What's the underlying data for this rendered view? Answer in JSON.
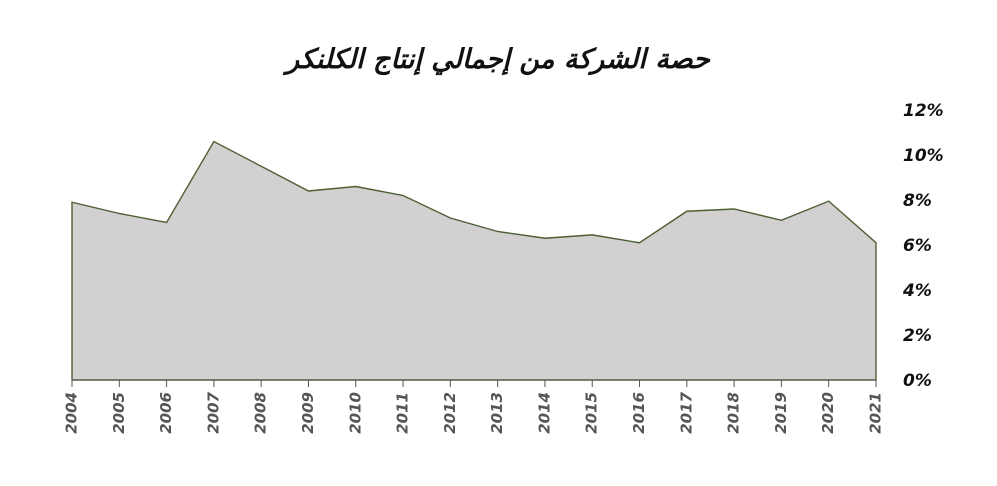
{
  "chart_data": {
    "type": "area",
    "title": "حصة الشركة من إجمالي إنتاج الكلنكر",
    "xlabel": "",
    "ylabel": "",
    "categories": [
      "2004",
      "2005",
      "2006",
      "2007",
      "2008",
      "2009",
      "2010",
      "2011",
      "2012",
      "2013",
      "2014",
      "2015",
      "2016",
      "2017",
      "2018",
      "2019",
      "2020",
      "2021"
    ],
    "values": [
      7.9,
      7.4,
      7.0,
      10.6,
      9.5,
      8.4,
      8.6,
      8.2,
      7.2,
      6.6,
      6.3,
      6.45,
      6.1,
      7.5,
      7.6,
      7.1,
      7.95,
      6.1
    ],
    "ylim": [
      0,
      12
    ],
    "yticks": [
      0,
      2,
      4,
      6,
      8,
      10,
      12
    ],
    "ytick_labels": [
      "0%",
      "2%",
      "4%",
      "6%",
      "8%",
      "10%",
      "12%"
    ],
    "y_axis_side": "right",
    "grid": false,
    "legend": "none",
    "colors": {
      "fill": "#d2d0d1",
      "line": "#4d5e33",
      "axis": "#555555"
    }
  }
}
